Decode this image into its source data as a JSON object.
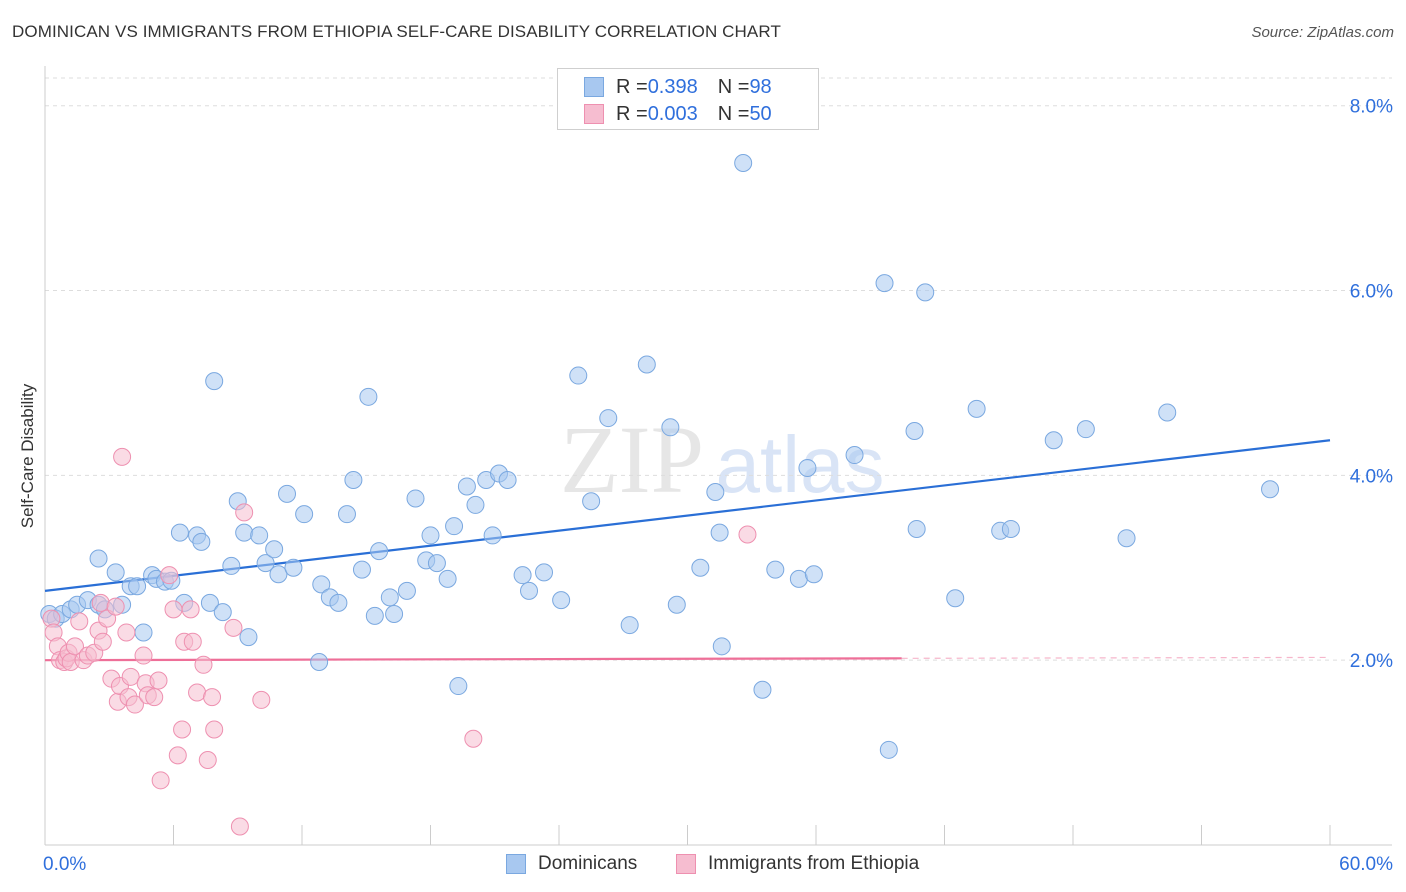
{
  "title": "DOMINICAN VS IMMIGRANTS FROM ETHIOPIA SELF-CARE DISABILITY CORRELATION CHART",
  "source": "Source: ZipAtlas.com",
  "watermark": {
    "zip": "ZIP",
    "atlas": "atlas"
  },
  "legend": {
    "rows": [
      {
        "r_label": "R = ",
        "r_value": "0.398",
        "n_label": "N = ",
        "n_value": "98",
        "color": "#a8c8f0",
        "border": "#7aa8e0"
      },
      {
        "r_label": "R = ",
        "r_value": "0.003",
        "n_label": "N = ",
        "n_value": "50",
        "color": "#f6bdd0",
        "border": "#ee90b0"
      }
    ]
  },
  "bottom_legend": [
    {
      "label": "Dominicans",
      "color": "#a8c8f0",
      "border": "#7aa8e0"
    },
    {
      "label": "Immigrants from Ethiopia",
      "color": "#f6bdd0",
      "border": "#ee90b0"
    }
  ],
  "chart_data": {
    "type": "scatter",
    "title": "DOMINICAN VS IMMIGRANTS FROM ETHIOPIA SELF-CARE DISABILITY CORRELATION CHART",
    "xlabel": "",
    "ylabel": "Self-Care Disability",
    "xlim": [
      0,
      60
    ],
    "ylim": [
      0,
      8.3
    ],
    "x_tick_labels": [
      {
        "value": 0,
        "label": "0.0%"
      },
      {
        "value": 60,
        "label": "60.0%"
      }
    ],
    "y_tick_labels": [
      {
        "value": 2,
        "label": "2.0%"
      },
      {
        "value": 4,
        "label": "4.0%"
      },
      {
        "value": 6,
        "label": "6.0%"
      },
      {
        "value": 8,
        "label": "8.0%"
      }
    ],
    "x_minor_ticks": [
      6,
      12,
      18,
      24,
      30,
      36,
      42,
      48,
      54,
      60
    ],
    "grid": true,
    "series": [
      {
        "name": "Dominicans",
        "color": "#a8c8f0",
        "stroke": "#7aa8e0",
        "trend": {
          "x0": 0,
          "y0": 2.75,
          "x1": 60,
          "y1": 4.38,
          "color": "#2a6fd6"
        },
        "points": [
          [
            0.2,
            2.5
          ],
          [
            0.5,
            2.45
          ],
          [
            0.8,
            2.5
          ],
          [
            1.2,
            2.55
          ],
          [
            1.5,
            2.6
          ],
          [
            2,
            2.65
          ],
          [
            2.5,
            2.6
          ],
          [
            2.8,
            2.55
          ],
          [
            2.5,
            3.1
          ],
          [
            3.3,
            2.95
          ],
          [
            3.6,
            2.6
          ],
          [
            4,
            2.8
          ],
          [
            4.3,
            2.8
          ],
          [
            4.6,
            2.3
          ],
          [
            5,
            2.92
          ],
          [
            5.2,
            2.88
          ],
          [
            5.6,
            2.85
          ],
          [
            5.9,
            2.86
          ],
          [
            6.3,
            3.38
          ],
          [
            6.5,
            2.62
          ],
          [
            7.1,
            3.35
          ],
          [
            7.3,
            3.28
          ],
          [
            7.7,
            2.62
          ],
          [
            7.9,
            5.02
          ],
          [
            8.3,
            2.52
          ],
          [
            8.7,
            3.02
          ],
          [
            9,
            3.72
          ],
          [
            9.3,
            3.38
          ],
          [
            9.5,
            2.25
          ],
          [
            10,
            3.35
          ],
          [
            10.3,
            3.05
          ],
          [
            10.7,
            3.2
          ],
          [
            10.9,
            2.93
          ],
          [
            11.3,
            3.8
          ],
          [
            11.6,
            3.0
          ],
          [
            12.1,
            3.58
          ],
          [
            12.8,
            1.98
          ],
          [
            12.9,
            2.82
          ],
          [
            13.3,
            2.68
          ],
          [
            13.7,
            2.62
          ],
          [
            14.1,
            3.58
          ],
          [
            14.4,
            3.95
          ],
          [
            14.8,
            2.98
          ],
          [
            15.1,
            4.85
          ],
          [
            15.4,
            2.48
          ],
          [
            15.6,
            3.18
          ],
          [
            16.1,
            2.68
          ],
          [
            16.3,
            2.5
          ],
          [
            16.9,
            2.75
          ],
          [
            17.3,
            3.75
          ],
          [
            17.8,
            3.08
          ],
          [
            18,
            3.35
          ],
          [
            18.3,
            3.05
          ],
          [
            18.8,
            2.88
          ],
          [
            19.1,
            3.45
          ],
          [
            19.3,
            1.72
          ],
          [
            19.7,
            3.88
          ],
          [
            20.1,
            3.68
          ],
          [
            20.6,
            3.95
          ],
          [
            20.9,
            3.35
          ],
          [
            21.2,
            4.02
          ],
          [
            21.6,
            3.95
          ],
          [
            22.3,
            2.92
          ],
          [
            22.6,
            2.75
          ],
          [
            23.3,
            2.95
          ],
          [
            24.1,
            2.65
          ],
          [
            24.9,
            5.08
          ],
          [
            25.5,
            3.72
          ],
          [
            26.3,
            4.62
          ],
          [
            27.3,
            2.38
          ],
          [
            28.1,
            5.2
          ],
          [
            29.2,
            4.52
          ],
          [
            29.5,
            2.6
          ],
          [
            30.6,
            3.0
          ],
          [
            31.3,
            3.82
          ],
          [
            31.5,
            3.38
          ],
          [
            31.6,
            2.15
          ],
          [
            32.6,
            7.38
          ],
          [
            33.5,
            1.68
          ],
          [
            34.1,
            2.98
          ],
          [
            35.2,
            2.88
          ],
          [
            35.6,
            4.08
          ],
          [
            35.9,
            2.93
          ],
          [
            37.8,
            4.22
          ],
          [
            39.2,
            6.08
          ],
          [
            39.4,
            1.03
          ],
          [
            40.6,
            4.48
          ],
          [
            40.7,
            3.42
          ],
          [
            41.1,
            5.98
          ],
          [
            42.5,
            2.67
          ],
          [
            43.5,
            4.72
          ],
          [
            44.6,
            3.4
          ],
          [
            45.1,
            3.42
          ],
          [
            47.1,
            4.38
          ],
          [
            48.6,
            4.5
          ],
          [
            50.5,
            3.32
          ],
          [
            52.4,
            4.68
          ],
          [
            57.2,
            3.85
          ]
        ]
      },
      {
        "name": "Immigrants from Ethiopia",
        "color": "#f6bdd0",
        "stroke": "#ee90b0",
        "trend": {
          "x0": 0,
          "y0": 2.0,
          "x1": 40,
          "y1": 2.02,
          "dash_to": 60,
          "color": "#ee6f98"
        },
        "points": [
          [
            0.3,
            2.45
          ],
          [
            0.4,
            2.3
          ],
          [
            0.6,
            2.15
          ],
          [
            0.7,
            2.0
          ],
          [
            0.9,
            1.98
          ],
          [
            1,
            2.02
          ],
          [
            1.1,
            2.08
          ],
          [
            1.2,
            1.98
          ],
          [
            1.4,
            2.15
          ],
          [
            1.6,
            2.42
          ],
          [
            1.8,
            2.0
          ],
          [
            2,
            2.05
          ],
          [
            2.3,
            2.08
          ],
          [
            2.5,
            2.32
          ],
          [
            2.6,
            2.62
          ],
          [
            2.7,
            2.2
          ],
          [
            2.9,
            2.45
          ],
          [
            3.1,
            1.8
          ],
          [
            3.3,
            2.58
          ],
          [
            3.4,
            1.55
          ],
          [
            3.5,
            1.72
          ],
          [
            3.6,
            4.2
          ],
          [
            3.8,
            2.3
          ],
          [
            3.9,
            1.6
          ],
          [
            4.0,
            1.82
          ],
          [
            4.2,
            1.52
          ],
          [
            4.6,
            2.05
          ],
          [
            4.7,
            1.75
          ],
          [
            4.8,
            1.62
          ],
          [
            5.1,
            1.6
          ],
          [
            5.3,
            1.78
          ],
          [
            5.4,
            0.7
          ],
          [
            5.8,
            2.92
          ],
          [
            6,
            2.55
          ],
          [
            6.2,
            0.97
          ],
          [
            6.4,
            1.25
          ],
          [
            6.5,
            2.2
          ],
          [
            6.8,
            2.55
          ],
          [
            6.9,
            2.2
          ],
          [
            7.1,
            1.65
          ],
          [
            7.4,
            1.95
          ],
          [
            7.6,
            0.92
          ],
          [
            7.8,
            1.6
          ],
          [
            7.9,
            1.25
          ],
          [
            8.8,
            2.35
          ],
          [
            9.1,
            0.2
          ],
          [
            9.3,
            3.6
          ],
          [
            10.1,
            1.57
          ],
          [
            20,
            1.15
          ],
          [
            32.8,
            3.36
          ]
        ]
      }
    ]
  }
}
